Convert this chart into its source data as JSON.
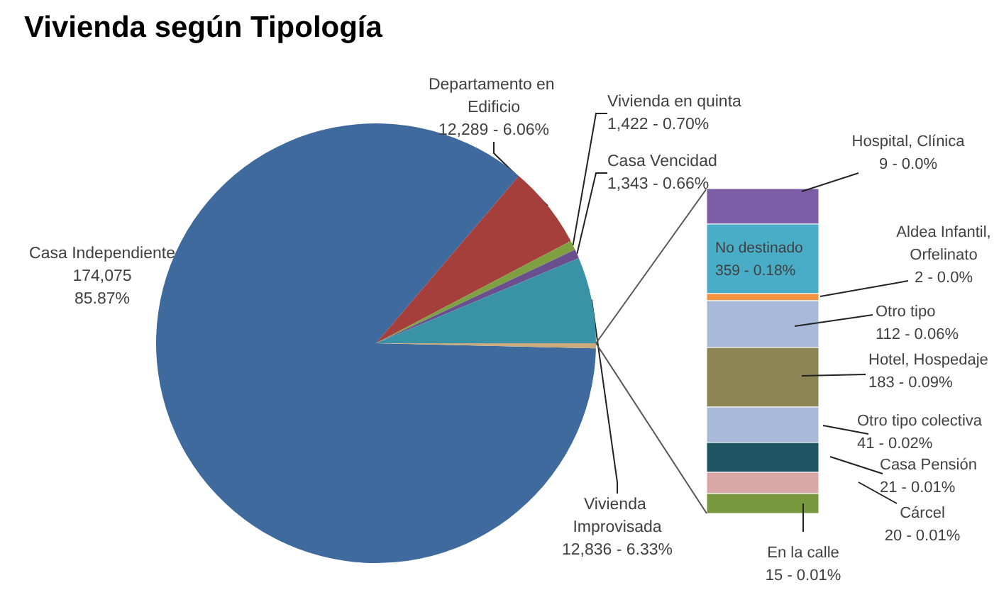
{
  "chart_data": [
    {
      "type": "pie",
      "title": "Vivienda según Tipología",
      "categories": [
        "Casa Independiente",
        "Departamento en Edificio",
        "Vivienda en quinta",
        "Casa Vencidad",
        "Vivienda Improvisada",
        null
      ],
      "values": [
        174075,
        12289,
        1422,
        1343,
        12836,
        762
      ],
      "value_labels": [
        "174,075\n85.87%",
        "12,289 - 6.06%",
        "1,422 - 0.70%",
        "1,343 - 0.66%",
        "12,836 - 6.33%",
        null
      ],
      "colors": [
        "#3e6a9d",
        "#a53f3b",
        "#7fa040",
        "#6a4f8e",
        "#3a92a6",
        "#c9aa7c"
      ]
    },
    {
      "type": "other",
      "categories": [
        "Hospital, Clínica",
        "No destinado",
        "Aldea Infantil, Orfelinato",
        "Otro tipo",
        "Hotel, Hospedaje",
        "Otro tipo colectiva",
        "Casa Pensión",
        "Cárcel",
        "En la calle"
      ],
      "values": [
        9,
        359,
        2,
        112,
        183,
        41,
        21,
        20,
        15
      ],
      "value_labels": [
        "9 - 0.0%",
        "359 - 0.18%",
        "2 - 0.0%",
        "112 - 0.06%",
        "183 - 0.09%",
        "41 - 0.02%",
        "21 - 0.01%",
        "20 - 0.01%",
        "15 - 0.01%"
      ],
      "colors": [
        "#7d5ea6",
        "#4aadc7",
        "#f5923e",
        "#a9b9d9",
        "#8c8452",
        "#a9b9d9",
        "#1f5664",
        "#dba8a8",
        "#78983e"
      ]
    }
  ]
}
